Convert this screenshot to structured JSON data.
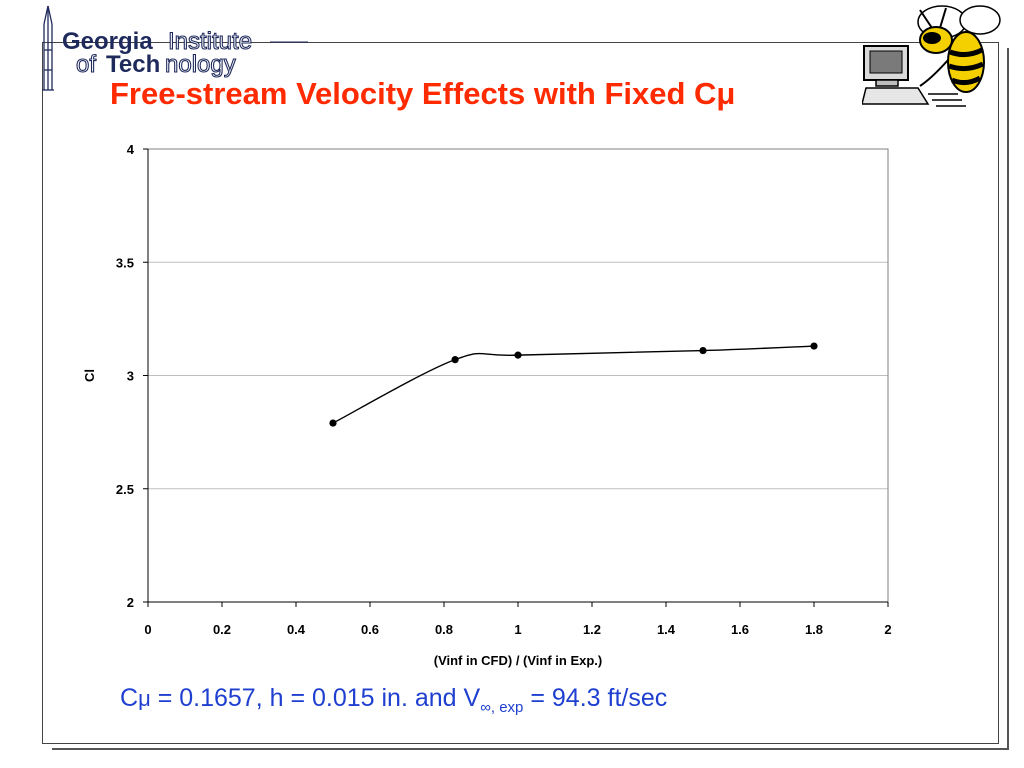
{
  "logo": {
    "line1_bold": "Georgia",
    "line1_light": "Institute",
    "line2_light": "of",
    "line2_bold": "Tech",
    "line2_tail": "nology"
  },
  "slide": {
    "title": "Free-stream Velocity Effects with Fixed Cμ",
    "caption": {
      "c_part": "C",
      "mu": "μ",
      "text_mid": " = 0.1657, h = 0.015 in. and V",
      "sub": "∞, exp",
      "text_end": " = 94.3 ft/sec"
    }
  },
  "chart_data": {
    "type": "scatter",
    "title": "",
    "xlabel": "(Vinf in CFD) / (Vinf in Exp.)",
    "ylabel": "Cl",
    "xlim": [
      0,
      2
    ],
    "ylim": [
      2,
      4
    ],
    "xticks": [
      "0",
      "0.2",
      "0.4",
      "0.6",
      "0.8",
      "1",
      "1.2",
      "1.4",
      "1.6",
      "1.8",
      "2"
    ],
    "yticks": [
      "2",
      "2.5",
      "3",
      "3.5",
      "4"
    ],
    "grid": "horizontal",
    "series": [
      {
        "x": [
          0.5,
          0.83,
          1.0,
          1.5,
          1.8
        ],
        "y": [
          2.79,
          3.07,
          3.09,
          3.11,
          3.13
        ],
        "line": "smooth",
        "marker": "circle",
        "color": "#000000"
      }
    ]
  },
  "colors": {
    "title": "#ff2a00",
    "caption": "#1f3fd0",
    "logo_navy": "#1f2a5c"
  }
}
